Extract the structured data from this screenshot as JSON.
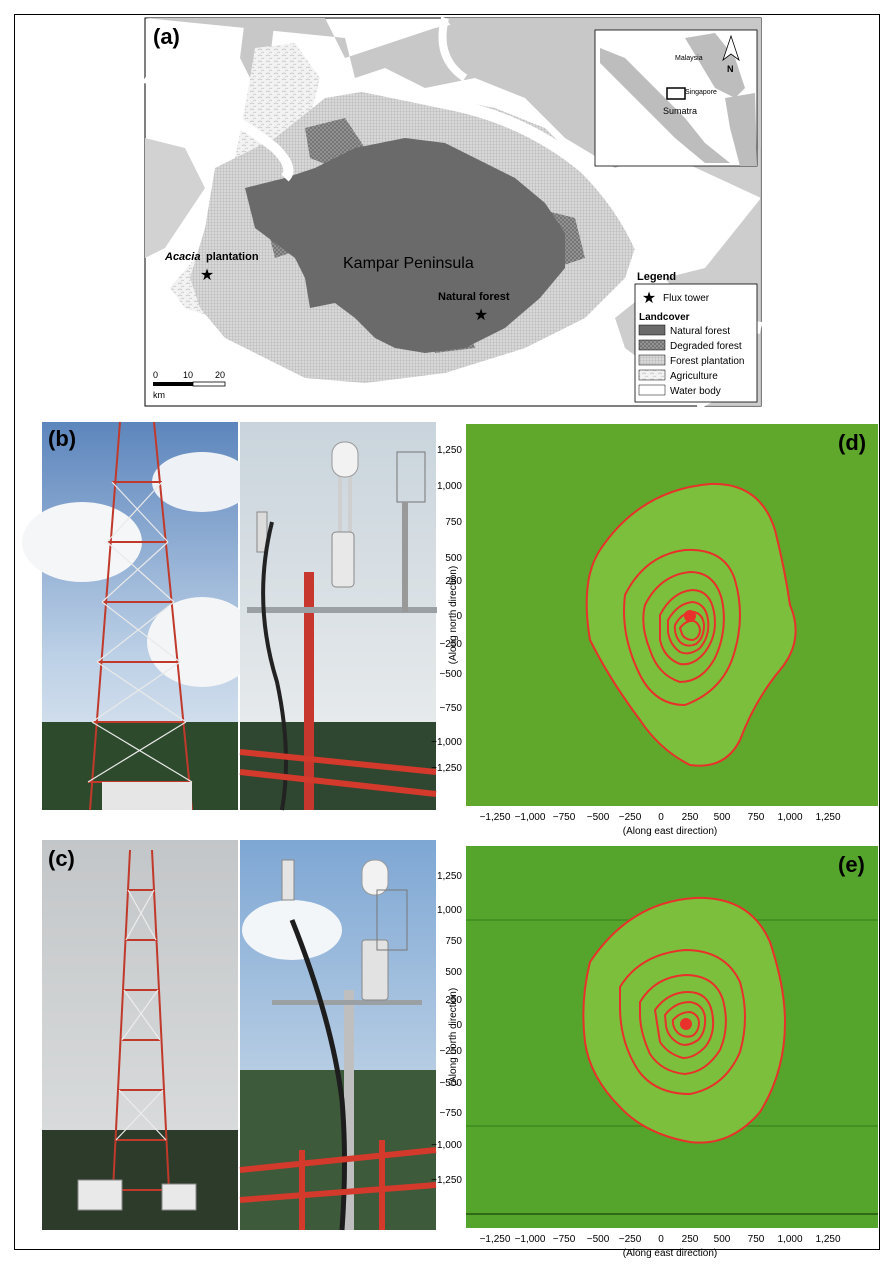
{
  "figure": {
    "panels": {
      "a": {
        "label": "(a)",
        "peninsula_label": "Kampar Peninsula",
        "site_acacia_italic": "Acacia",
        "site_acacia_rest": " plantation",
        "site_natural": "Natural forest",
        "inset": {
          "malaysia": "Malaysia",
          "singapore": "Singapore",
          "sumatra": "Sumatra",
          "north": "N"
        },
        "scale": {
          "ticks": [
            "0",
            "10",
            "20"
          ],
          "unit": "km"
        },
        "legend": {
          "title": "Legend",
          "flux_tower": "Flux tower",
          "landcover_title": "Landcover",
          "classes": [
            {
              "name": "Natural forest",
              "color": "#666666"
            },
            {
              "name": "Degraded forest",
              "color": "#8a8a8a"
            },
            {
              "name": "Forest plantation",
              "color": "#c9c9c9"
            },
            {
              "name": "Agriculture",
              "color": "#eeeeee"
            },
            {
              "name": "Water body",
              "color": "#ffffff"
            }
          ]
        }
      },
      "b": {
        "label": "(b)"
      },
      "c": {
        "label": "(c)"
      },
      "d": {
        "label": "(d)",
        "background_color": "#5fa82c",
        "contour_color": "#e8312a",
        "xlabel": "(Along east direction)",
        "ylabel": "(Along north direction)",
        "xticks": [
          "−1,250",
          "−1,000",
          "−750",
          "−500",
          "−250",
          "0",
          "250",
          "500",
          "750",
          "1,000",
          "1,250"
        ],
        "yticks": [
          "1,250",
          "1,000",
          "750",
          "500",
          "250",
          "0",
          "−250",
          "−500",
          "−750",
          "−1,000",
          "−1,250"
        ]
      },
      "e": {
        "label": "(e)",
        "background_color": "#55a52c",
        "contour_color": "#e8312a",
        "xlabel": "(Along east direction)",
        "ylabel": "(Along north direction)",
        "xticks": [
          "−1,250",
          "−1,000",
          "−750",
          "−500",
          "−250",
          "0",
          "250",
          "500",
          "750",
          "1,000",
          "1,250"
        ],
        "yticks": [
          "1,250",
          "1,000",
          "750",
          "500",
          "250",
          "0",
          "−250",
          "−500",
          "−750",
          "−1,000",
          "−1,250"
        ]
      }
    }
  }
}
